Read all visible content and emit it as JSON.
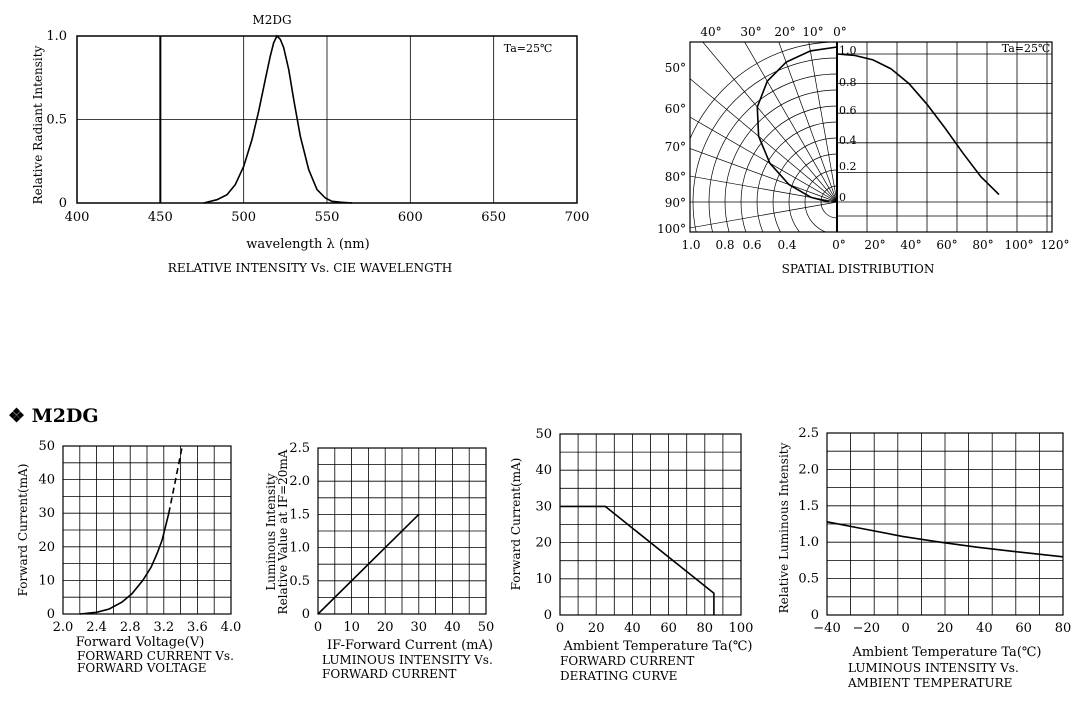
{
  "section_heading": {
    "bullet": "❖",
    "text": "M2DG"
  },
  "chart_data": [
    {
      "id": "spectrum",
      "type": "line",
      "title": "M2DG",
      "condition": "Ta=25℃",
      "xlabel": "wavelength λ (nm)",
      "ylabel": "Relative Radiant Intensity",
      "caption": "RELATIVE INTENSITY Vs. CIE WAVELENGTH",
      "xlim": [
        400,
        700
      ],
      "ylim": [
        0,
        1.0
      ],
      "x_ticks": [
        400,
        450,
        500,
        550,
        600,
        650,
        700
      ],
      "x_tick_labels": [
        "400",
        "450",
        "500",
        "550",
        "600",
        "650",
        "700"
      ],
      "y_ticks": [
        0,
        0.5,
        1.0
      ],
      "y_tick_labels": [
        "0",
        "0.5",
        "1.0"
      ],
      "grid": true,
      "series": [
        {
          "x": [
            476,
            484,
            490,
            495,
            500,
            505,
            509,
            513,
            516,
            518,
            520,
            522,
            524,
            527,
            530,
            534,
            539,
            544,
            549,
            553,
            558,
            565
          ],
          "y": [
            0,
            0.02,
            0.05,
            0.11,
            0.22,
            0.38,
            0.55,
            0.74,
            0.88,
            0.96,
            1.0,
            0.98,
            0.93,
            0.8,
            0.62,
            0.4,
            0.2,
            0.08,
            0.03,
            0.01,
            0.005,
            0
          ]
        }
      ]
    },
    {
      "id": "spatial",
      "type": "polar",
      "condition": "Ta=25℃",
      "caption": "SPATIAL DISTRIBUTION",
      "angle_labels": [
        "40°",
        "30°",
        "20°",
        "10°",
        "0°"
      ],
      "left_angle_labels": [
        "50°",
        "60°",
        "70°",
        "80°",
        "90°",
        "100°"
      ],
      "radial_labels": [
        "1.0",
        "0.8",
        "0.6",
        "0.4",
        "0.2",
        "0"
      ],
      "bottom_left_labels": [
        "1.0",
        "0.8",
        "0.6",
        "0.4"
      ],
      "bottom_right_labels": [
        "0°",
        "20°",
        "40°",
        "60°",
        "80°",
        "100°",
        "120°"
      ],
      "series": [
        {
          "angle_deg": [
            0,
            10,
            20,
            30,
            40,
            50,
            60,
            70,
            80,
            90
          ],
          "value": [
            1.0,
            0.99,
            0.96,
            0.9,
            0.8,
            0.66,
            0.5,
            0.33,
            0.17,
            0.05
          ]
        }
      ]
    },
    {
      "id": "iv",
      "type": "line",
      "xlabel": "Forward Voltage(V)",
      "ylabel": "Forward Current(mA)",
      "caption": [
        "FORWARD CURRENT Vs.",
        "FORWARD VOLTAGE"
      ],
      "xlim": [
        2.0,
        4.0
      ],
      "ylim": [
        0,
        50
      ],
      "x_tick_labels": [
        "2.0",
        "2.4",
        "2.8",
        "3.2",
        "3.6",
        "4.0"
      ],
      "y_tick_labels": [
        "0",
        "10",
        "20",
        "30",
        "40",
        "50"
      ],
      "grid": true,
      "series": [
        {
          "name": "",
          "style": "solid",
          "x": [
            2.2,
            2.4,
            2.55,
            2.7,
            2.82,
            2.95,
            3.05,
            3.12,
            3.18,
            3.22,
            3.26
          ],
          "y": [
            0,
            0.5,
            1.5,
            3.5,
            6,
            10,
            14,
            18,
            22,
            26,
            30
          ]
        },
        {
          "name": "",
          "style": "dashed",
          "x": [
            3.26,
            3.3,
            3.34,
            3.38,
            3.42
          ],
          "y": [
            30,
            35,
            40,
            45,
            50
          ]
        }
      ]
    },
    {
      "id": "lum_vs_if",
      "type": "line",
      "xlabel": "IF-Forward Current (mA)",
      "ylabel": [
        "Luminous Intensity",
        "Relative Value at IF=20mA"
      ],
      "caption": [
        "LUMINOUS INTENSITY Vs.",
        "FORWARD CURRENT"
      ],
      "xlim": [
        0,
        50
      ],
      "ylim": [
        0,
        2.5
      ],
      "x_tick_labels": [
        "0",
        "10",
        "20",
        "30",
        "40",
        "50"
      ],
      "y_tick_labels": [
        "0",
        "0.5",
        "1.0",
        "1.5",
        "2.0",
        "2.5"
      ],
      "grid": true,
      "series": [
        {
          "x": [
            0,
            30
          ],
          "y": [
            0,
            1.5
          ]
        }
      ]
    },
    {
      "id": "derating",
      "type": "line",
      "xlabel": "Ambient Temperature Ta(℃)",
      "ylabel": "Forward Current(mA)",
      "caption": [
        "FORWARD CURRENT",
        "DERATING CURVE"
      ],
      "xlim": [
        0,
        100
      ],
      "ylim": [
        0,
        50
      ],
      "x_tick_labels": [
        "0",
        "20",
        "40",
        "60",
        "80",
        "100"
      ],
      "y_tick_labels": [
        "0",
        "10",
        "20",
        "30",
        "40",
        "50"
      ],
      "grid": true,
      "series": [
        {
          "x": [
            0,
            25,
            85,
            85
          ],
          "y": [
            30,
            30,
            6,
            0
          ]
        }
      ]
    },
    {
      "id": "lum_vs_temp",
      "type": "line",
      "xlabel": "Ambient Temperature Ta(℃)",
      "ylabel": "Relative Luminous Intensity",
      "caption": [
        "LUMINOUS INTENSITY Vs.",
        "AMBIENT TEMPERATURE"
      ],
      "xlim": [
        -40,
        85
      ],
      "ylim": [
        0,
        2.5
      ],
      "x_tick_labels": [
        "−40",
        "−20",
        "0",
        "20",
        "40",
        "60",
        "80"
      ],
      "y_tick_labels": [
        "0",
        "0.5",
        "1.0",
        "1.5",
        "2.0",
        "2.5"
      ],
      "grid": true,
      "series": [
        {
          "x": [
            -40,
            -20,
            0,
            20,
            40,
            60,
            85
          ],
          "y": [
            1.28,
            1.18,
            1.08,
            1.0,
            0.93,
            0.87,
            0.8
          ]
        }
      ]
    }
  ]
}
